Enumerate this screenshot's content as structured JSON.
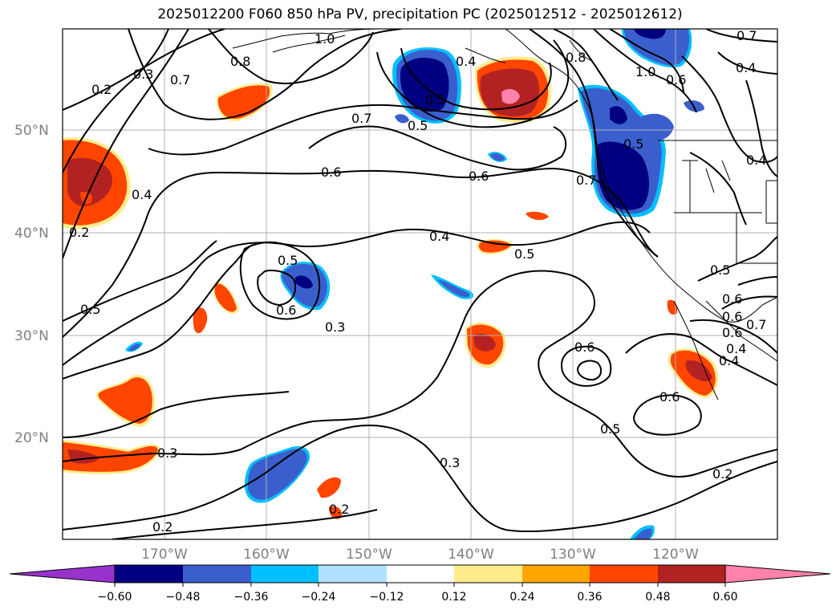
{
  "title": "2025012200 F060 850 hPa PV, precipitation PC (2025012512 - 2025012612)",
  "lat_labels": [
    "50°N",
    "40°N",
    "30°N",
    "20°N"
  ],
  "lon_labels": [
    "170°W",
    "160°W",
    "150°W",
    "140°W",
    "130°W",
    "120°W"
  ],
  "contour_labels": [
    "1.0",
    "0.8",
    "0.7",
    "0.3",
    "0.2",
    "0.4",
    "0.2",
    "0.5",
    "0.6",
    "0.3",
    "0.5",
    "0.3",
    "0.2",
    "0.4",
    "0.5",
    "0.7",
    "0.6",
    "0.4",
    "0.5",
    "0.8",
    "1.0",
    "0.4",
    "0.7",
    "0.6",
    "0.5",
    "0.6",
    "0.5",
    "0.6",
    "0.3",
    "0.2",
    "0.5",
    "0.6",
    "0.4",
    "0.7",
    "0.4",
    "0.6",
    "0.4",
    "0.5",
    "0.6",
    "0.2",
    "0.6",
    "0.7"
  ],
  "colorbar": {
    "ticks": [
      "−0.60",
      "−0.48",
      "−0.36",
      "−0.24",
      "−0.12",
      "0.12",
      "0.24",
      "0.36",
      "0.48",
      "0.60"
    ],
    "colors": [
      "#9932cc",
      "#000080",
      "#3a5fcd",
      "#00bfff",
      "#b0e2ff",
      "#ffffff",
      "#ffec8b",
      "#ffa500",
      "#ff4500",
      "#b22222",
      "#ff82ab"
    ]
  },
  "colors": {
    "strong_negative": "#000080",
    "negative": "#3a5fcd",
    "weak_negative": "#00bfff",
    "weak_positive": "#ffec8b",
    "positive": "#ff4500",
    "strong_positive": "#b22222",
    "max_positive": "#ff82ab"
  }
}
